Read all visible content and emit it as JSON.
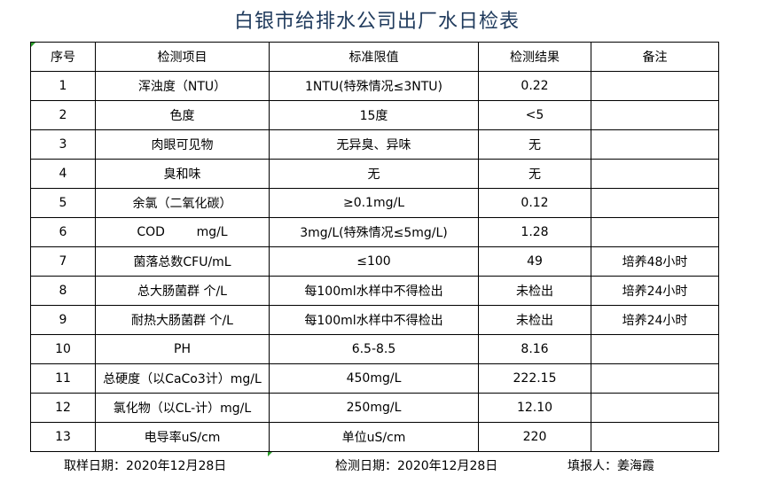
{
  "title": "白银市给排水公司出厂水日检表",
  "headers": [
    "序号",
    "检测项目",
    "标准限值",
    "检测结果",
    "备注"
  ],
  "rows": [
    [
      "1",
      "浑浊度（NTU）",
      "1NTU(特殊情况≤3NTU)",
      "0.22",
      ""
    ],
    [
      "2",
      "色度",
      "15度",
      "<5",
      ""
    ],
    [
      "3",
      "肉眼可见物",
      "无异臭、异味",
      "无",
      ""
    ],
    [
      "4",
      "臭和味",
      "无",
      "无",
      ""
    ],
    [
      "5",
      "余氯（二氧化碳）",
      "≥0.1mg/L",
      "0.12",
      ""
    ],
    [
      "6",
      "COD        mg/L",
      "3mg/L(特殊情况≤5mg/L)",
      "1.28",
      ""
    ],
    [
      "7",
      "菌落总数CFU/mL",
      "≤100",
      "49",
      "培养48小时"
    ],
    [
      "8",
      "总大肠菌群 个/L",
      "每100ml水样中不得检出",
      "未检出",
      "培养24小时"
    ],
    [
      "9",
      "耐热大肠菌群 个/L",
      "每100ml水样中不得检出",
      "未检出",
      "培养24小时"
    ],
    [
      "10",
      "PH",
      "6.5-8.5",
      "8.16",
      ""
    ],
    [
      "11",
      "总硬度（以CaCo3计）mg/L",
      "450mg/L",
      "222.15",
      ""
    ],
    [
      "12",
      "氯化物（以CL-计）mg/L",
      "250mg/L",
      "12.10",
      ""
    ],
    [
      "13",
      "电导率uS/cm",
      "单位uS/cm",
      "220",
      ""
    ]
  ],
  "footer": {
    "sample_date": "取样日期：2020年12月28日",
    "test_date": "检测日期：2020年12月28日",
    "reporter": "填报人：姜海霞"
  }
}
